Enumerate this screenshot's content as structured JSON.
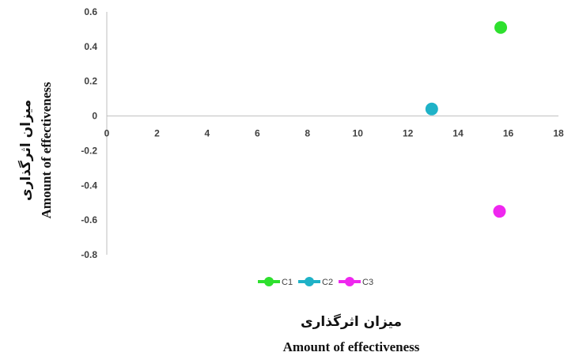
{
  "chart_data": {
    "type": "scatter",
    "xlim": [
      0,
      18
    ],
    "ylim": [
      -0.8,
      0.6
    ],
    "x_ticks": [
      "0",
      "2",
      "4",
      "6",
      "8",
      "10",
      "12",
      "14",
      "16",
      "18"
    ],
    "y_ticks": [
      "0.6",
      "0.4",
      "0.2",
      "0",
      "-0.2",
      "-0.4",
      "-0.6",
      "-0.8"
    ],
    "x_tick_values": [
      0,
      2,
      4,
      6,
      8,
      10,
      12,
      14,
      16,
      18
    ],
    "y_tick_values": [
      0.6,
      0.4,
      0.2,
      0,
      -0.2,
      -0.4,
      -0.6,
      -0.8
    ],
    "xlabel_fa": "میزان اثرگذاری",
    "xlabel_en": "Amount of effectiveness",
    "ylabel_fa": "میزان اثرگذاری",
    "ylabel_en": "Amount of effectiveness",
    "grid": false,
    "legend_position": "bottom",
    "series": [
      {
        "name": "C1",
        "color": "#2ee02e",
        "x": 15.7,
        "y": 0.51
      },
      {
        "name": "C2",
        "color": "#1fb2c7",
        "x": 12.95,
        "y": 0.04
      },
      {
        "name": "C3",
        "color": "#ef27ef",
        "x": 15.65,
        "y": -0.55
      }
    ]
  }
}
